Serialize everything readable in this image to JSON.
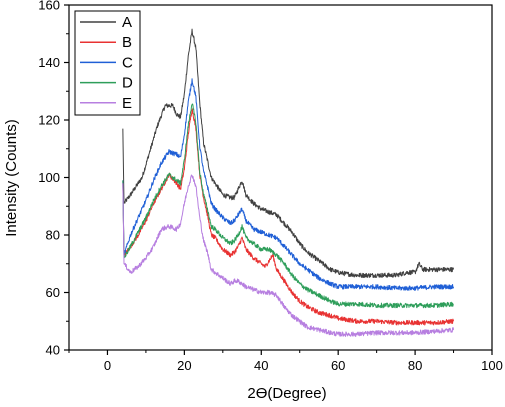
{
  "chart_data": {
    "type": "line",
    "xlabel": "2ϴ(Degree)",
    "ylabel": "Intensity (Counts)",
    "xlim": [
      -10,
      100
    ],
    "ylim": [
      40,
      160
    ],
    "x_ticks": [
      0,
      20,
      40,
      60,
      80,
      100
    ],
    "y_ticks": [
      40,
      60,
      80,
      100,
      120,
      140,
      160
    ],
    "grid": false,
    "legend_position": "top-left",
    "series": [
      {
        "name": "A",
        "color": "#404040",
        "points": [
          [
            4,
            117
          ],
          [
            4.3,
            91
          ],
          [
            6,
            94
          ],
          [
            9,
            100
          ],
          [
            11,
            109
          ],
          [
            13,
            118
          ],
          [
            15,
            125
          ],
          [
            17,
            125
          ],
          [
            18,
            122
          ],
          [
            19,
            121
          ],
          [
            20,
            129
          ],
          [
            21,
            142
          ],
          [
            22,
            151
          ],
          [
            23,
            145
          ],
          [
            24,
            126
          ],
          [
            25,
            112
          ],
          [
            26,
            106
          ],
          [
            27,
            100
          ],
          [
            28,
            98
          ],
          [
            30,
            94
          ],
          [
            32,
            93
          ],
          [
            33,
            93
          ],
          [
            34,
            96
          ],
          [
            35,
            99
          ],
          [
            36,
            94
          ],
          [
            38,
            91
          ],
          [
            40,
            89
          ],
          [
            42,
            88
          ],
          [
            44,
            87
          ],
          [
            46,
            84
          ],
          [
            48,
            81
          ],
          [
            50,
            77
          ],
          [
            52,
            74
          ],
          [
            55,
            71
          ],
          [
            58,
            68
          ],
          [
            60,
            67
          ],
          [
            62,
            66.5
          ],
          [
            65,
            66
          ],
          [
            70,
            66
          ],
          [
            75,
            66
          ],
          [
            78,
            67
          ],
          [
            80,
            67
          ],
          [
            81,
            70
          ],
          [
            82,
            68
          ],
          [
            85,
            68
          ],
          [
            90,
            68
          ]
        ]
      },
      {
        "name": "B",
        "color": "#e83232",
        "points": [
          [
            4,
            98
          ],
          [
            4.3,
            73
          ],
          [
            6,
            76
          ],
          [
            8,
            80
          ],
          [
            10,
            85
          ],
          [
            12,
            91
          ],
          [
            14,
            96
          ],
          [
            16,
            101
          ],
          [
            18,
            98
          ],
          [
            19,
            96
          ],
          [
            20,
            103
          ],
          [
            21,
            115
          ],
          [
            22,
            124
          ],
          [
            23,
            117
          ],
          [
            24,
            101
          ],
          [
            25,
            93
          ],
          [
            26,
            87
          ],
          [
            27,
            80
          ],
          [
            28,
            79
          ],
          [
            30,
            75
          ],
          [
            32,
            73
          ],
          [
            33,
            74
          ],
          [
            34,
            76
          ],
          [
            35,
            79
          ],
          [
            36,
            75
          ],
          [
            38,
            72
          ],
          [
            40,
            70
          ],
          [
            41,
            69
          ],
          [
            42,
            71
          ],
          [
            43,
            73
          ],
          [
            44,
            68
          ],
          [
            46,
            64
          ],
          [
            48,
            60
          ],
          [
            50,
            57
          ],
          [
            52,
            55
          ],
          [
            55,
            53
          ],
          [
            58,
            52
          ],
          [
            60,
            51
          ],
          [
            65,
            50
          ],
          [
            70,
            50
          ],
          [
            75,
            49.5
          ],
          [
            80,
            49.5
          ],
          [
            85,
            49.5
          ],
          [
            90,
            50
          ]
        ]
      },
      {
        "name": "C",
        "color": "#1f5fd6",
        "points": [
          [
            4,
            99
          ],
          [
            4.3,
            73
          ],
          [
            6,
            80
          ],
          [
            8,
            86
          ],
          [
            10,
            92
          ],
          [
            12,
            99
          ],
          [
            14,
            105
          ],
          [
            16,
            109
          ],
          [
            18,
            108
          ],
          [
            19,
            107
          ],
          [
            20,
            115
          ],
          [
            21,
            126
          ],
          [
            22,
            134
          ],
          [
            23,
            128
          ],
          [
            24,
            111
          ],
          [
            25,
            102
          ],
          [
            26,
            97
          ],
          [
            27,
            91
          ],
          [
            28,
            89
          ],
          [
            30,
            86
          ],
          [
            32,
            84
          ],
          [
            33,
            85
          ],
          [
            34,
            87
          ],
          [
            35,
            89
          ],
          [
            36,
            85
          ],
          [
            38,
            82
          ],
          [
            40,
            81
          ],
          [
            42,
            80
          ],
          [
            44,
            79
          ],
          [
            46,
            76
          ],
          [
            48,
            73
          ],
          [
            50,
            70
          ],
          [
            52,
            68
          ],
          [
            55,
            65
          ],
          [
            58,
            63
          ],
          [
            60,
            62
          ],
          [
            65,
            62
          ],
          [
            70,
            62
          ],
          [
            75,
            61.5
          ],
          [
            80,
            61.5
          ],
          [
            85,
            62
          ],
          [
            90,
            62
          ]
        ]
      },
      {
        "name": "D",
        "color": "#2e9e5a",
        "points": [
          [
            4,
            99
          ],
          [
            4.3,
            72
          ],
          [
            6,
            76
          ],
          [
            8,
            81
          ],
          [
            10,
            86
          ],
          [
            12,
            92
          ],
          [
            14,
            97
          ],
          [
            16,
            101
          ],
          [
            18,
            99
          ],
          [
            19,
            98
          ],
          [
            20,
            106
          ],
          [
            21,
            118
          ],
          [
            22,
            126
          ],
          [
            23,
            119
          ],
          [
            24,
            102
          ],
          [
            25,
            94
          ],
          [
            26,
            89
          ],
          [
            27,
            83
          ],
          [
            28,
            82
          ],
          [
            30,
            79
          ],
          [
            32,
            77
          ],
          [
            33,
            78
          ],
          [
            34,
            80
          ],
          [
            35,
            83
          ],
          [
            36,
            79
          ],
          [
            38,
            77
          ],
          [
            40,
            75
          ],
          [
            42,
            75
          ],
          [
            44,
            73
          ],
          [
            46,
            70
          ],
          [
            48,
            66
          ],
          [
            50,
            63
          ],
          [
            52,
            61
          ],
          [
            55,
            59
          ],
          [
            58,
            57
          ],
          [
            60,
            56
          ],
          [
            65,
            56
          ],
          [
            70,
            55.5
          ],
          [
            75,
            55.5
          ],
          [
            80,
            55.5
          ],
          [
            85,
            55.5
          ],
          [
            90,
            56
          ]
        ]
      },
      {
        "name": "E",
        "color": "#b77fe0",
        "points": [
          [
            4,
            98
          ],
          [
            4.3,
            70
          ],
          [
            6,
            67
          ],
          [
            8,
            69
          ],
          [
            10,
            72
          ],
          [
            12,
            76
          ],
          [
            14,
            82
          ],
          [
            16,
            83
          ],
          [
            18,
            82
          ],
          [
            19,
            84
          ],
          [
            20,
            91
          ],
          [
            21,
            97
          ],
          [
            22,
            101
          ],
          [
            23,
            97
          ],
          [
            24,
            86
          ],
          [
            25,
            78
          ],
          [
            26,
            74
          ],
          [
            27,
            68
          ],
          [
            28,
            67
          ],
          [
            30,
            65
          ],
          [
            32,
            63
          ],
          [
            33,
            64
          ],
          [
            34,
            64
          ],
          [
            35,
            63
          ],
          [
            36,
            62
          ],
          [
            38,
            61
          ],
          [
            40,
            60
          ],
          [
            42,
            60
          ],
          [
            44,
            59
          ],
          [
            46,
            55
          ],
          [
            48,
            52
          ],
          [
            50,
            50
          ],
          [
            52,
            48
          ],
          [
            55,
            47
          ],
          [
            58,
            46
          ],
          [
            60,
            45.5
          ],
          [
            65,
            45.5
          ],
          [
            70,
            46
          ],
          [
            75,
            46
          ],
          [
            80,
            46
          ],
          [
            85,
            46.5
          ],
          [
            90,
            47
          ]
        ]
      }
    ]
  }
}
